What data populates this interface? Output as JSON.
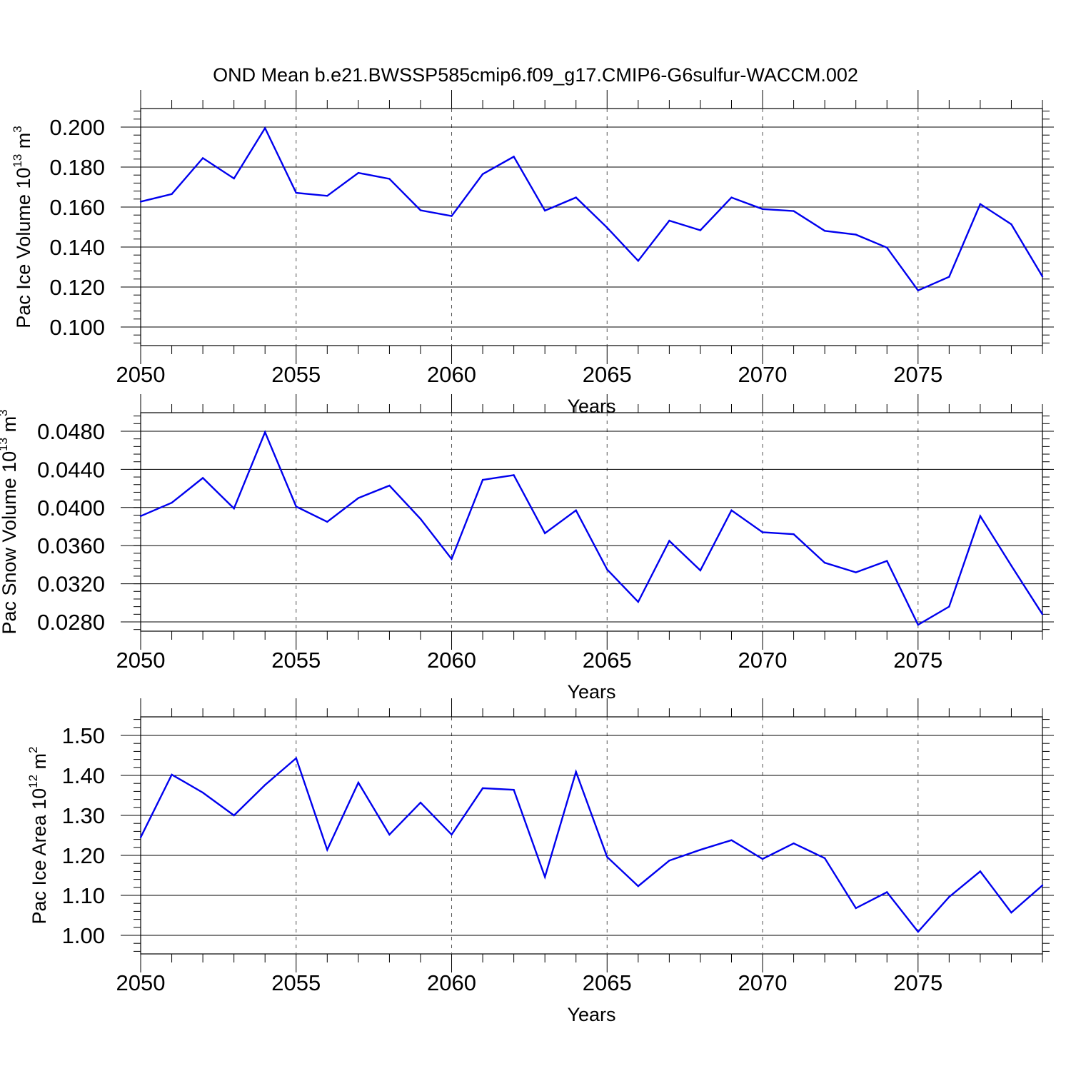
{
  "figure": {
    "title": "OND Mean b.e21.BWSSP585cmip6.f09_g17.CMIP6-G6sulfur-WACCM.002"
  },
  "colors": {
    "series": "#0000ee",
    "axis": "#000000",
    "grid": "#555555",
    "background": "#ffffff"
  },
  "chart_data": [
    {
      "type": "line",
      "ylabel_main": "Pac Ice Volume 10",
      "ylabel_sup": "13",
      "ylabel_unit": " m",
      "ylabel_unit_sup": "3",
      "xlabel": "Years",
      "xlim": [
        2050,
        2079
      ],
      "ylim": [
        0.1,
        0.2
      ],
      "yticks": [
        "0.100",
        "0.120",
        "0.140",
        "0.160",
        "0.180",
        "0.200"
      ],
      "xticks": [
        "2050",
        "2055",
        "2060",
        "2065",
        "2070",
        "2075"
      ],
      "grid": "vertical dashed at major x ticks",
      "x": [
        2050,
        2051,
        2052,
        2053,
        2054,
        2055,
        2056,
        2057,
        2058,
        2059,
        2060,
        2061,
        2062,
        2063,
        2064,
        2065,
        2066,
        2067,
        2068,
        2069,
        2070,
        2071,
        2072,
        2073,
        2074,
        2075,
        2076,
        2077,
        2078,
        2079
      ],
      "values": [
        0.1627,
        0.1665,
        0.1845,
        0.1743,
        0.1995,
        0.1671,
        0.1656,
        0.1771,
        0.1741,
        0.1584,
        0.1555,
        0.1765,
        0.1852,
        0.1582,
        0.1648,
        0.1497,
        0.1331,
        0.1532,
        0.1484,
        0.1648,
        0.159,
        0.158,
        0.1481,
        0.1462,
        0.1397,
        0.1183,
        0.1251,
        0.1615,
        0.1514,
        0.1253
      ]
    },
    {
      "type": "line",
      "ylabel_main": "Pac Snow Volume 10",
      "ylabel_sup": "13",
      "ylabel_unit": " m",
      "ylabel_unit_sup": "3",
      "xlabel": "Years",
      "xlim": [
        2050,
        2079
      ],
      "ylim": [
        0.027,
        0.05
      ],
      "yticks": [
        "0.0280",
        "0.0320",
        "0.0360",
        "0.0400",
        "0.0440",
        "0.0480"
      ],
      "xticks": [
        "2050",
        "2055",
        "2060",
        "2065",
        "2070",
        "2075"
      ],
      "grid": "vertical dashed at major x ticks",
      "x": [
        2050,
        2051,
        2052,
        2053,
        2054,
        2055,
        2056,
        2057,
        2058,
        2059,
        2060,
        2061,
        2062,
        2063,
        2064,
        2065,
        2066,
        2067,
        2068,
        2069,
        2070,
        2071,
        2072,
        2073,
        2074,
        2075,
        2076,
        2077,
        2078,
        2079
      ],
      "values": [
        0.0391,
        0.0405,
        0.0431,
        0.0399,
        0.0479,
        0.0401,
        0.0385,
        0.041,
        0.0423,
        0.0388,
        0.0346,
        0.0429,
        0.0434,
        0.0373,
        0.0397,
        0.0335,
        0.0301,
        0.0365,
        0.0334,
        0.0397,
        0.0374,
        0.0372,
        0.0342,
        0.0332,
        0.0344,
        0.0277,
        0.0296,
        0.0391,
        0.0339,
        0.0288
      ]
    },
    {
      "type": "line",
      "ylabel_main": "Pac Ice Area 10",
      "ylabel_sup": "12",
      "ylabel_unit": " m",
      "ylabel_unit_sup": "2",
      "xlabel": "Years",
      "xlim": [
        2050,
        2079
      ],
      "ylim": [
        1.0,
        1.5
      ],
      "yticks": [
        "1.00",
        "1.10",
        "1.20",
        "1.30",
        "1.40",
        "1.50"
      ],
      "xticks": [
        "2050",
        "2055",
        "2060",
        "2065",
        "2070",
        "2075"
      ],
      "grid": "vertical dashed at major x ticks",
      "x": [
        2050,
        2051,
        2052,
        2053,
        2054,
        2055,
        2056,
        2057,
        2058,
        2059,
        2060,
        2061,
        2062,
        2063,
        2064,
        2065,
        2066,
        2067,
        2068,
        2069,
        2070,
        2071,
        2072,
        2073,
        2074,
        2075,
        2076,
        2077,
        2078,
        2079
      ],
      "values": [
        1.245,
        1.402,
        1.357,
        1.3,
        1.376,
        1.443,
        1.214,
        1.382,
        1.252,
        1.332,
        1.252,
        1.368,
        1.364,
        1.146,
        1.409,
        1.196,
        1.123,
        1.187,
        1.214,
        1.238,
        1.191,
        1.23,
        1.193,
        1.068,
        1.108,
        1.009,
        1.096,
        1.16,
        1.057,
        1.125
      ]
    }
  ]
}
